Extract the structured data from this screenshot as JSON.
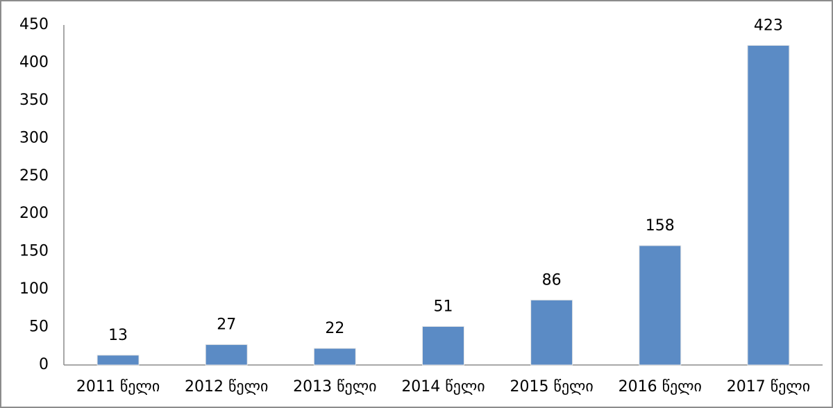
{
  "chart_data": {
    "type": "bar",
    "categories": [
      "2011 წელი",
      "2012 წელი",
      "2013 წელი",
      "2014 წელი",
      "2015 წელი",
      "2016 წელი",
      "2017 წელი"
    ],
    "values": [
      13,
      27,
      22,
      51,
      86,
      158,
      423
    ],
    "color": "#5b8bc5",
    "ylim": [
      0,
      450
    ],
    "yticks": [
      0,
      50,
      100,
      150,
      200,
      250,
      300,
      350,
      400,
      450
    ],
    "grid": false
  }
}
